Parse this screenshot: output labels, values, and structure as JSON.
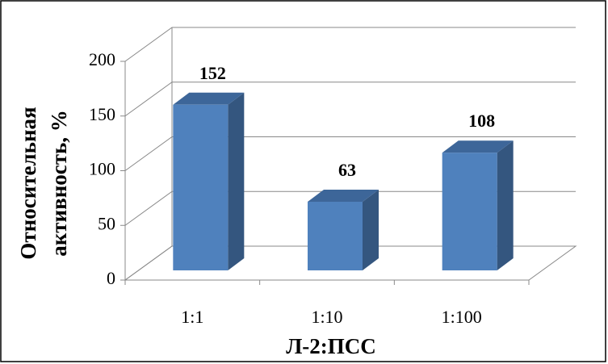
{
  "chart_data": {
    "type": "bar3d",
    "y_label": [
      "Относительная",
      "активность, %"
    ],
    "x_label": "Л-2:ПСС",
    "categories": [
      "1:1",
      "1:10",
      "1:100"
    ],
    "values": [
      152,
      63,
      108
    ],
    "color": "#4f81bd",
    "ylim": [
      0,
      200
    ],
    "yticks": [
      0,
      50,
      100,
      150,
      200
    ],
    "grid": true
  }
}
